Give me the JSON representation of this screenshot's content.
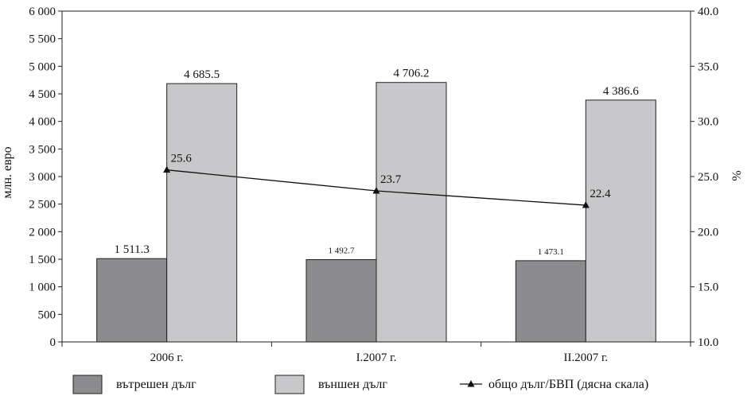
{
  "chart_data": {
    "type": "bar",
    "categories": [
      "2006 г.",
      "I.2007 г.",
      "II.2007 г."
    ],
    "series": [
      {
        "name": "вътрешен дълг",
        "values": [
          1511.3,
          1492.7,
          1473.1
        ],
        "labels": [
          "1 511.3",
          "1 492.7",
          "1 473.1"
        ],
        "color": "#8c8c8e"
      },
      {
        "name": "външен дълг",
        "values": [
          4685.5,
          4706.2,
          4386.6
        ],
        "labels": [
          "4 685.5",
          "4 706.2",
          "4 386.6"
        ],
        "color": "#c8c8ca"
      }
    ],
    "line_series": {
      "name": "общо дълг/БВП (дясна скала)",
      "values": [
        25.6,
        23.7,
        22.4
      ],
      "labels": [
        "25.6",
        "23.7",
        "22.4"
      ],
      "axis": "right",
      "marker": "triangle"
    },
    "ylabel": "млн. евро",
    "y2label": "%",
    "ylim": [
      0,
      6000
    ],
    "y2lim": [
      10.0,
      40.0
    ],
    "yticks": [
      0,
      500,
      1000,
      1500,
      2000,
      2500,
      3000,
      3500,
      4000,
      4500,
      5000,
      5500,
      6000
    ],
    "ytick_labels": [
      "0",
      "500",
      "1 000",
      "1 500",
      "2 000",
      "2 500",
      "3 000",
      "3 500",
      "4 000",
      "4 500",
      "5 000",
      "5 500",
      "6 000"
    ],
    "y2ticks": [
      10,
      15,
      20,
      25,
      30,
      35,
      40
    ],
    "y2tick_labels": [
      "10.0",
      "15.0",
      "20.0",
      "25.0",
      "30.0",
      "35.0",
      "40.0"
    ],
    "grid": false,
    "legend_position": "bottom"
  }
}
